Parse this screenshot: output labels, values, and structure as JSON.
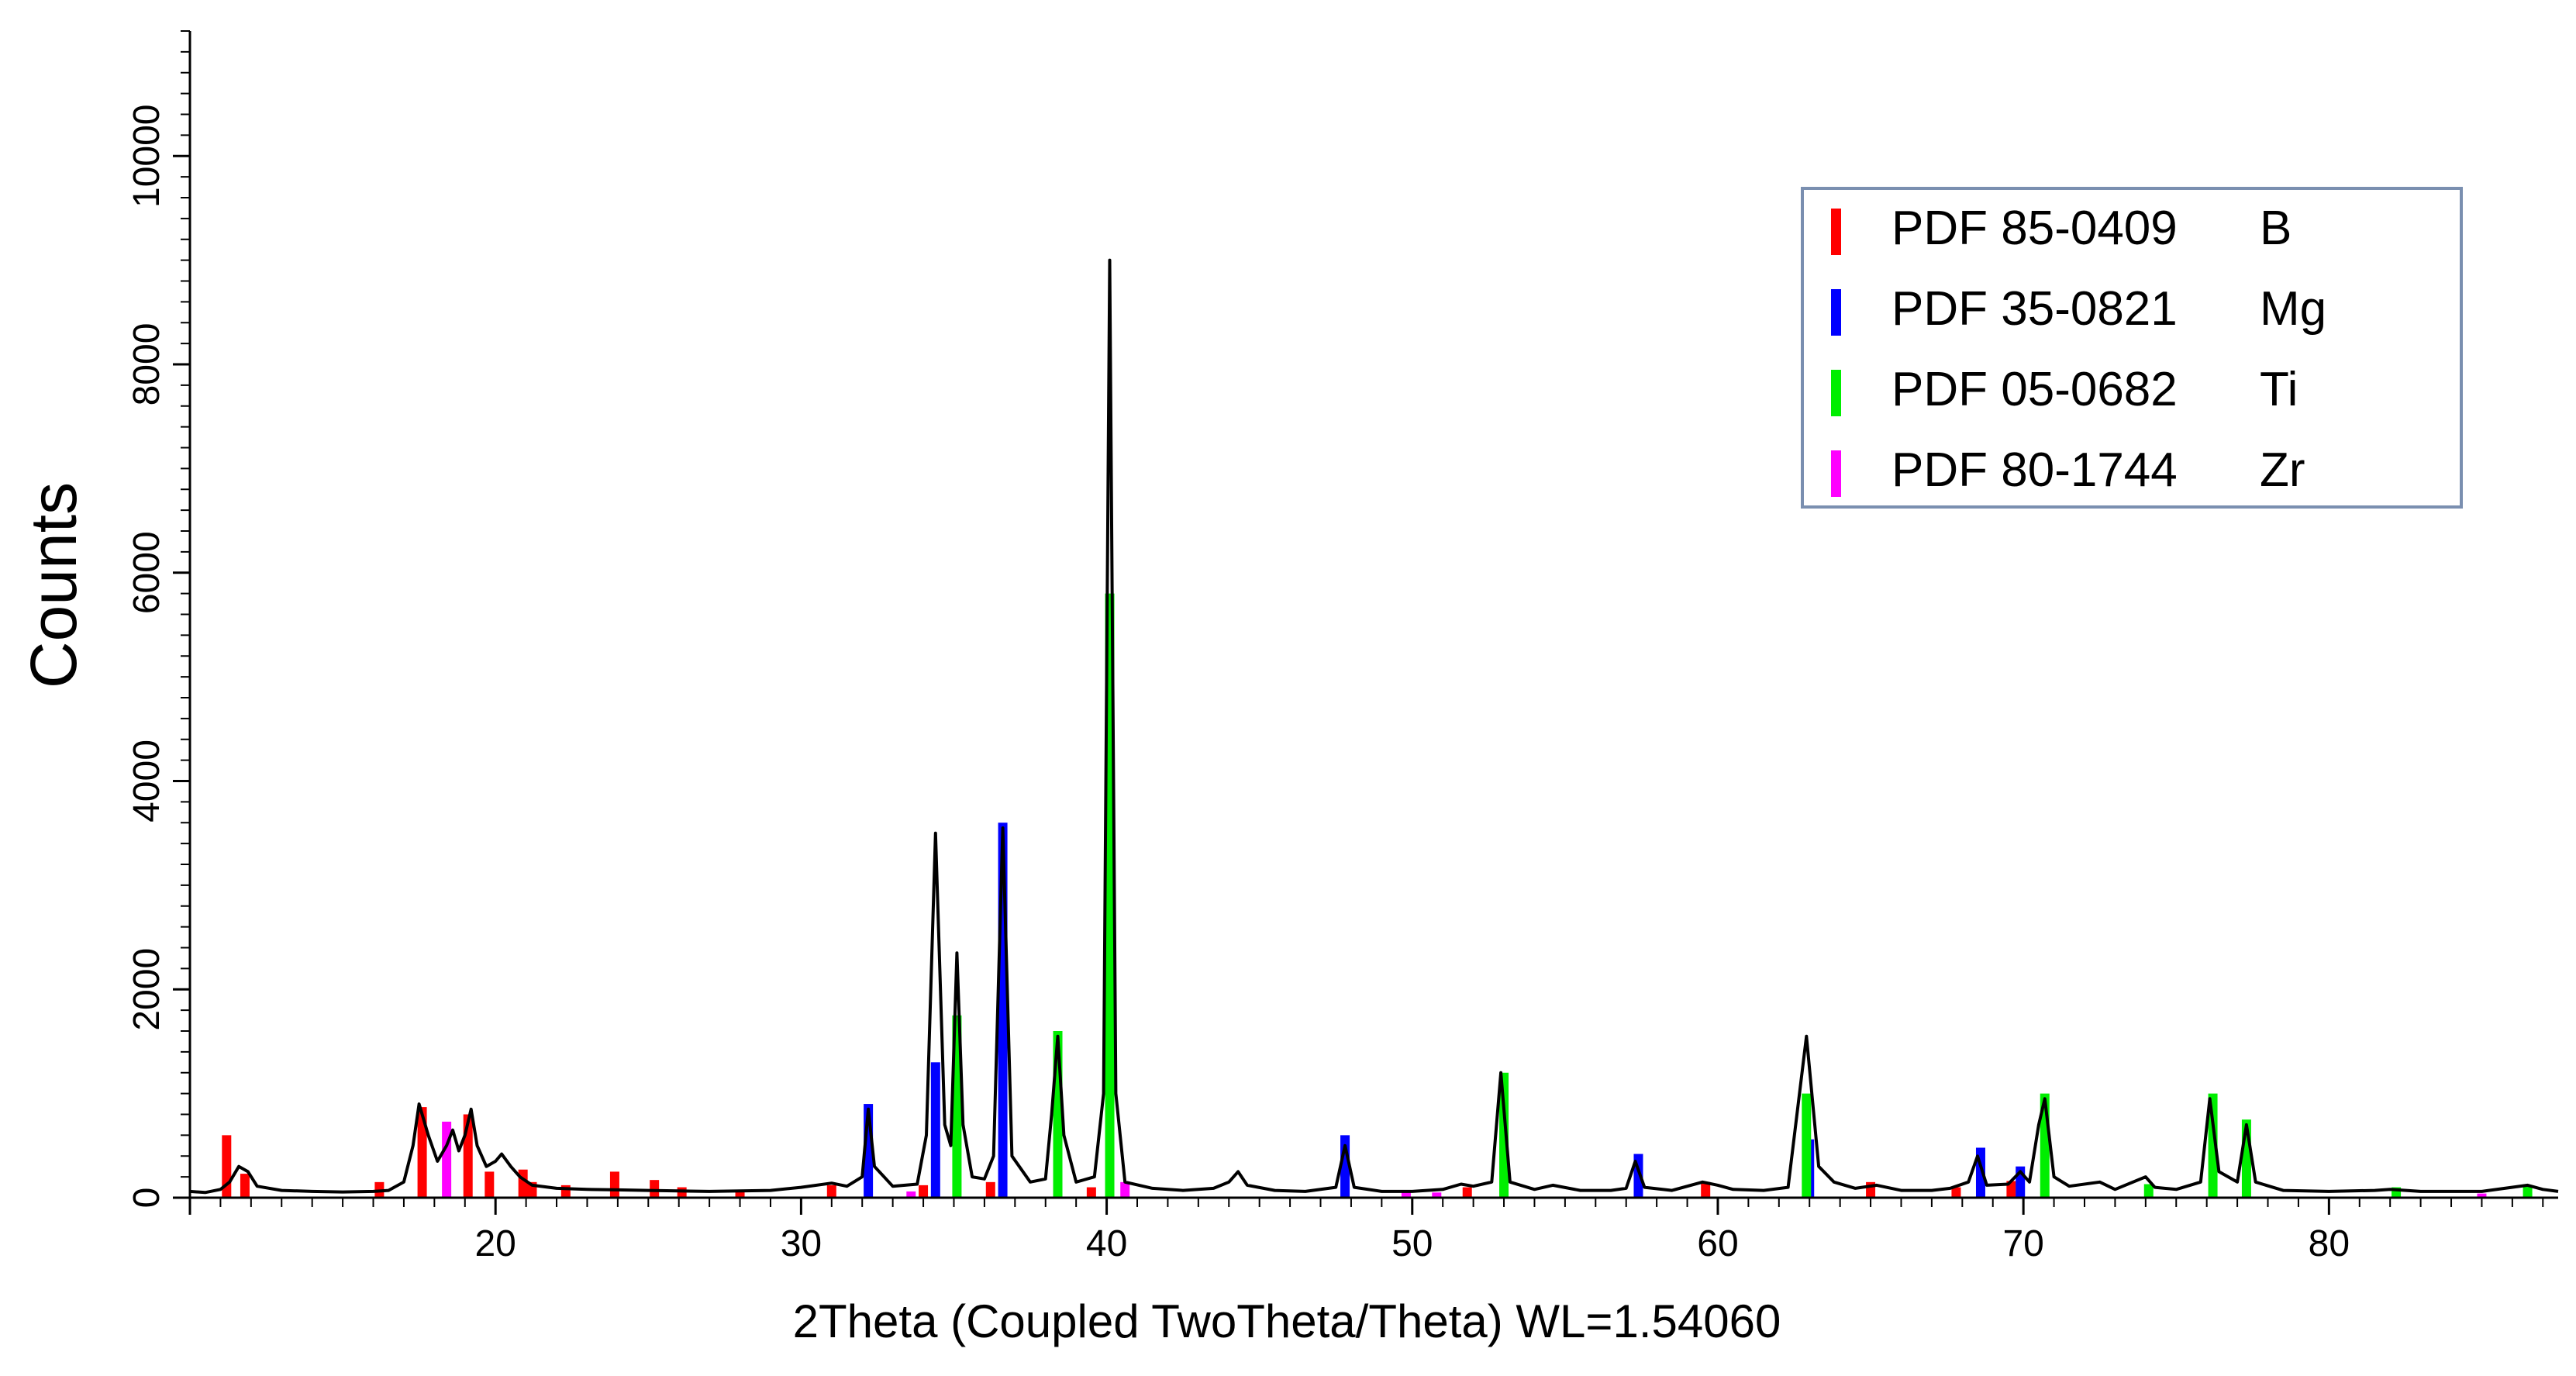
{
  "chart_data": {
    "type": "line",
    "title": "",
    "xlabel": "2Theta (Coupled TwoTheta/Theta) WL=1.54060",
    "ylabel": "Counts",
    "xlim": [
      10,
      87.5
    ],
    "ylim": [
      0,
      11200
    ],
    "x_ticks": [
      20,
      30,
      40,
      50,
      60,
      70,
      80
    ],
    "y_ticks": [
      0,
      2000,
      4000,
      6000,
      8000,
      10000
    ],
    "grid": false,
    "legend_position": "top-right",
    "pattern": {
      "color": "#000000",
      "points": [
        [
          10,
          60
        ],
        [
          10.5,
          50
        ],
        [
          11.0,
          80
        ],
        [
          11.3,
          150
        ],
        [
          11.6,
          300
        ],
        [
          11.9,
          250
        ],
        [
          12.2,
          110
        ],
        [
          13,
          70
        ],
        [
          14,
          60
        ],
        [
          15,
          55
        ],
        [
          16,
          60
        ],
        [
          16.5,
          70
        ],
        [
          17.0,
          150
        ],
        [
          17.3,
          500
        ],
        [
          17.5,
          900
        ],
        [
          17.8,
          600
        ],
        [
          18.1,
          350
        ],
        [
          18.4,
          500
        ],
        [
          18.6,
          650
        ],
        [
          18.8,
          450
        ],
        [
          19.0,
          600
        ],
        [
          19.2,
          850
        ],
        [
          19.4,
          500
        ],
        [
          19.7,
          300
        ],
        [
          20.0,
          350
        ],
        [
          20.2,
          420
        ],
        [
          20.5,
          300
        ],
        [
          20.8,
          200
        ],
        [
          21.2,
          120
        ],
        [
          22,
          90
        ],
        [
          23,
          80
        ],
        [
          24,
          75
        ],
        [
          25,
          70
        ],
        [
          26,
          65
        ],
        [
          27,
          60
        ],
        [
          28,
          65
        ],
        [
          29,
          70
        ],
        [
          30,
          100
        ],
        [
          31,
          140
        ],
        [
          31.5,
          110
        ],
        [
          32.0,
          200
        ],
        [
          32.2,
          850
        ],
        [
          32.4,
          300
        ],
        [
          33,
          110
        ],
        [
          33.8,
          130
        ],
        [
          34.1,
          600
        ],
        [
          34.4,
          3500
        ],
        [
          34.7,
          700
        ],
        [
          34.9,
          500
        ],
        [
          35.1,
          2350
        ],
        [
          35.3,
          700
        ],
        [
          35.6,
          200
        ],
        [
          36.0,
          180
        ],
        [
          36.3,
          400
        ],
        [
          36.6,
          3550
        ],
        [
          36.9,
          400
        ],
        [
          37.5,
          150
        ],
        [
          38.0,
          180
        ],
        [
          38.2,
          800
        ],
        [
          38.4,
          1550
        ],
        [
          38.6,
          600
        ],
        [
          39.0,
          150
        ],
        [
          39.6,
          200
        ],
        [
          39.9,
          1000
        ],
        [
          40.1,
          9000
        ],
        [
          40.3,
          1000
        ],
        [
          40.6,
          150
        ],
        [
          41.5,
          90
        ],
        [
          42.5,
          70
        ],
        [
          43.5,
          90
        ],
        [
          44.0,
          150
        ],
        [
          44.3,
          250
        ],
        [
          44.6,
          120
        ],
        [
          45.5,
          70
        ],
        [
          46.5,
          60
        ],
        [
          47.5,
          100
        ],
        [
          47.8,
          500
        ],
        [
          48.1,
          100
        ],
        [
          49,
          60
        ],
        [
          50,
          60
        ],
        [
          51,
          80
        ],
        [
          51.6,
          130
        ],
        [
          52,
          110
        ],
        [
          52.6,
          150
        ],
        [
          52.9,
          1200
        ],
        [
          53.2,
          150
        ],
        [
          54,
          80
        ],
        [
          54.6,
          120
        ],
        [
          55.5,
          70
        ],
        [
          56.5,
          70
        ],
        [
          57.0,
          90
        ],
        [
          57.3,
          350
        ],
        [
          57.6,
          100
        ],
        [
          58.5,
          70
        ],
        [
          59.5,
          150
        ],
        [
          60.0,
          120
        ],
        [
          60.5,
          80
        ],
        [
          61.5,
          70
        ],
        [
          62.3,
          100
        ],
        [
          62.9,
          1550
        ],
        [
          63.3,
          300
        ],
        [
          63.8,
          150
        ],
        [
          64.5,
          90
        ],
        [
          65.2,
          120
        ],
        [
          66,
          70
        ],
        [
          67,
          70
        ],
        [
          67.6,
          90
        ],
        [
          68.2,
          150
        ],
        [
          68.5,
          400
        ],
        [
          68.8,
          120
        ],
        [
          69.5,
          130
        ],
        [
          69.9,
          250
        ],
        [
          70.2,
          150
        ],
        [
          70.5,
          700
        ],
        [
          70.7,
          950
        ],
        [
          71.0,
          200
        ],
        [
          71.5,
          110
        ],
        [
          72.5,
          150
        ],
        [
          73,
          80
        ],
        [
          74.0,
          200
        ],
        [
          74.3,
          100
        ],
        [
          75,
          80
        ],
        [
          75.8,
          150
        ],
        [
          76.1,
          950
        ],
        [
          76.4,
          250
        ],
        [
          77.0,
          150
        ],
        [
          77.3,
          700
        ],
        [
          77.6,
          150
        ],
        [
          78.5,
          70
        ],
        [
          80,
          60
        ],
        [
          81.5,
          70
        ],
        [
          82.0,
          80
        ],
        [
          83,
          60
        ],
        [
          85,
          60
        ],
        [
          86.5,
          120
        ],
        [
          87.0,
          80
        ],
        [
          87.5,
          60
        ]
      ]
    },
    "series": [
      {
        "name": "PDF 85-0409",
        "element": "B",
        "color": "#ff0000",
        "x": [
          11.2,
          11.8,
          16.2,
          17.6,
          19.1,
          19.8,
          20.9,
          21.2,
          22.3,
          23.9,
          25.2,
          26.1,
          28.0,
          31.0,
          34.0,
          36.2,
          39.5,
          51.8,
          59.6,
          65.0,
          67.8,
          69.6
        ],
        "y": [
          600,
          230,
          150,
          870,
          800,
          250,
          270,
          150,
          120,
          250,
          170,
          100,
          60,
          120,
          120,
          150,
          100,
          100,
          150,
          150,
          100,
          160
        ]
      },
      {
        "name": "PDF 35-0821",
        "element": "Mg",
        "color": "#0000ff",
        "x": [
          32.2,
          34.4,
          36.6,
          47.8,
          57.4,
          63.0,
          68.6,
          69.9
        ],
        "y": [
          900,
          1300,
          3600,
          600,
          420,
          560,
          480,
          300
        ]
      },
      {
        "name": "PDF 05-0682",
        "element": "Ti",
        "color": "#00ee00",
        "x": [
          35.1,
          38.4,
          40.1,
          53.0,
          62.9,
          70.7,
          74.1,
          76.2,
          77.3,
          82.2,
          86.5
        ],
        "y": [
          1750,
          1600,
          5800,
          1200,
          1000,
          1000,
          130,
          1000,
          750,
          100,
          120
        ]
      },
      {
        "name": "PDF 80-1744",
        "element": "Zr",
        "color": "#ff00ff",
        "x": [
          18.4,
          33.6,
          40.6,
          49.8,
          50.8,
          85.0
        ],
        "y": [
          730,
          60,
          150,
          50,
          50,
          40
        ]
      }
    ]
  }
}
